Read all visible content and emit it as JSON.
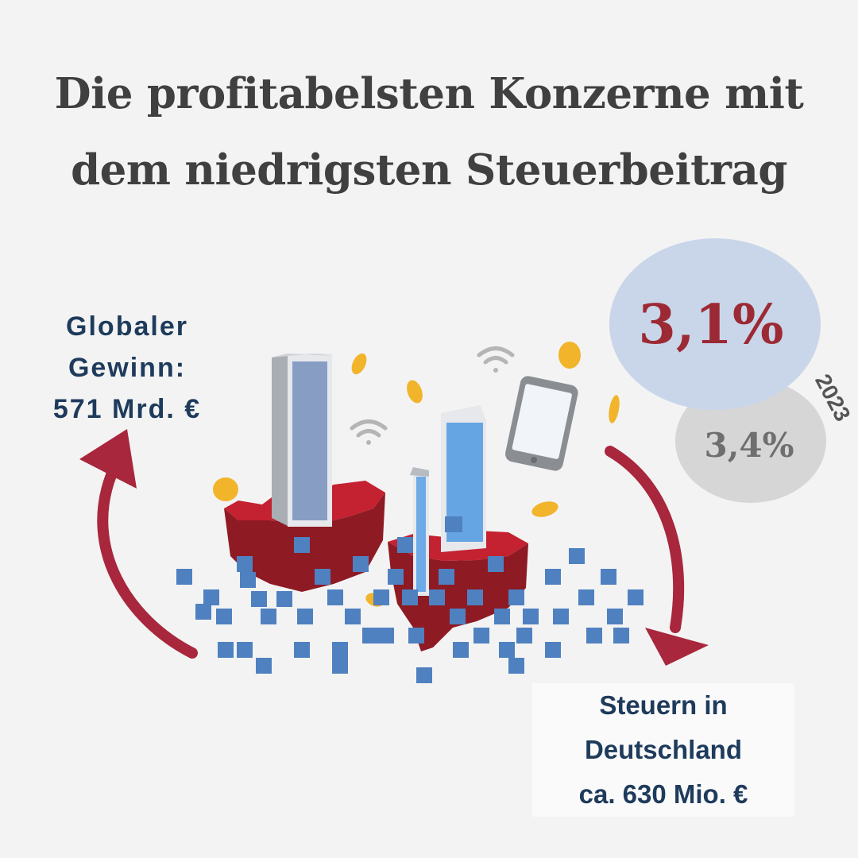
{
  "title": {
    "line1": "Die profitabelsten Konzerne mit",
    "line2": "dem niedrigsten Steuerbeitrag"
  },
  "global_profit": {
    "line1": "Globaler",
    "line2": "Gewinn:",
    "line3": "571 Mrd. €"
  },
  "german_tax": {
    "line1": "Steuern in",
    "line2": "Deutschland",
    "line3": "ca. 630 Mio. €"
  },
  "rates": {
    "current": "3,1%",
    "previous": "3,4%",
    "previous_year": "2023"
  },
  "colors": {
    "arrow": "#a8273c",
    "current_bubble": "#c9d6ea",
    "current_text": "#9c2a35",
    "previous_bubble": "#d6d6d6",
    "previous_text": "#6f6f6f",
    "pixel_blue": "#4f81c0",
    "land_red": "#b31c2c",
    "coin": "#f2b42a"
  },
  "icons": [
    "wifi-icon",
    "smartphone-icon",
    "coin-icon",
    "skyscraper-icon",
    "curved-arrow-icon"
  ]
}
